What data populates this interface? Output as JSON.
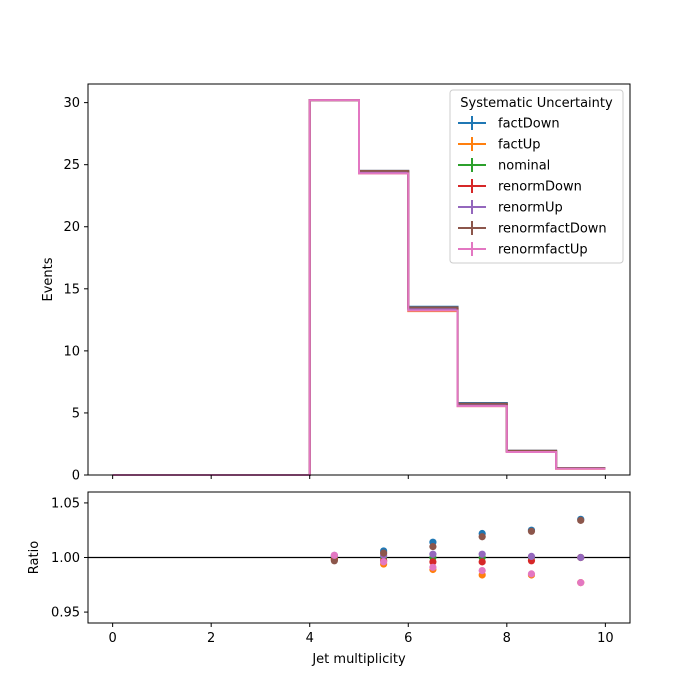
{
  "chart_data": [
    {
      "panel": "main",
      "type": "step-histogram",
      "ylabel": "Events",
      "xlim": [
        -0.5,
        10.5
      ],
      "ylim": [
        0,
        31.5
      ],
      "x_ticks": [
        0,
        2,
        4,
        6,
        8,
        10
      ],
      "y_ticks": [
        0,
        5,
        10,
        15,
        20,
        25,
        30
      ],
      "bin_edges": [
        0,
        1,
        2,
        3,
        4,
        5,
        6,
        7,
        8,
        9,
        10
      ],
      "legend": {
        "title": "Systematic Uncertainty",
        "placement": "upper right"
      },
      "series": [
        {
          "name": "factDown",
          "color": "#1f77b4",
          "values": [
            0,
            0,
            0,
            0,
            30.2,
            24.5,
            13.55,
            5.8,
            1.95,
            0.55
          ]
        },
        {
          "name": "factUp",
          "color": "#ff7f0e",
          "values": [
            0,
            0,
            0,
            0,
            30.2,
            24.3,
            13.2,
            5.55,
            1.85,
            0.5
          ]
        },
        {
          "name": "nominal",
          "color": "#2ca02c",
          "values": [
            0,
            0,
            0,
            0,
            30.2,
            24.4,
            13.4,
            5.65,
            1.9,
            0.52
          ]
        },
        {
          "name": "renormDown",
          "color": "#d62728",
          "values": [
            0,
            0,
            0,
            0,
            30.2,
            24.4,
            13.4,
            5.65,
            1.9,
            0.52
          ]
        },
        {
          "name": "renormUp",
          "color": "#9467bd",
          "values": [
            0,
            0,
            0,
            0,
            30.2,
            24.4,
            13.4,
            5.65,
            1.9,
            0.52
          ]
        },
        {
          "name": "renormfactDown",
          "color": "#8c564b",
          "values": [
            0,
            0,
            0,
            0,
            30.2,
            24.5,
            13.5,
            5.75,
            1.95,
            0.55
          ]
        },
        {
          "name": "renormfactUp",
          "color": "#e377c2",
          "values": [
            0,
            0,
            0,
            0,
            30.2,
            24.3,
            13.25,
            5.55,
            1.85,
            0.5
          ]
        }
      ]
    },
    {
      "panel": "ratio",
      "type": "scatter",
      "xlabel": "Jet multiplicity",
      "ylabel": "Ratio",
      "xlim": [
        -0.5,
        10.5
      ],
      "ylim": [
        0.94,
        1.06
      ],
      "x_ticks": [
        0,
        2,
        4,
        6,
        8,
        10
      ],
      "y_ticks": [
        0.95,
        1.0,
        1.05
      ],
      "y_tick_labels": [
        "0.95",
        "1.00",
        "1.05"
      ],
      "reference_line": 1.0,
      "x": [
        4.5,
        5.5,
        6.5,
        7.5,
        8.5,
        9.5
      ],
      "series": [
        {
          "name": "factDown",
          "color": "#1f77b4",
          "values": [
            1.001,
            1.006,
            1.014,
            1.022,
            1.025,
            1.035
          ]
        },
        {
          "name": "factUp",
          "color": "#ff7f0e",
          "values": [
            0.999,
            0.994,
            0.989,
            0.984,
            0.984,
            0.977
          ]
        },
        {
          "name": "nominal",
          "color": "#2ca02c",
          "values": [
            1.0,
            1.0,
            1.0,
            1.0,
            1.0,
            1.0
          ]
        },
        {
          "name": "renormDown",
          "color": "#d62728",
          "values": [
            0.998,
            0.997,
            0.996,
            0.996,
            0.997,
            1.0
          ]
        },
        {
          "name": "renormUp",
          "color": "#9467bd",
          "values": [
            1.002,
            1.002,
            1.003,
            1.003,
            1.001,
            1.0
          ]
        },
        {
          "name": "renormfactDown",
          "color": "#8c564b",
          "values": [
            0.997,
            1.004,
            1.01,
            1.019,
            1.024,
            1.034
          ]
        },
        {
          "name": "renormfactUp",
          "color": "#e377c2",
          "values": [
            1.002,
            0.996,
            0.991,
            0.988,
            0.985,
            0.977
          ]
        }
      ]
    }
  ]
}
